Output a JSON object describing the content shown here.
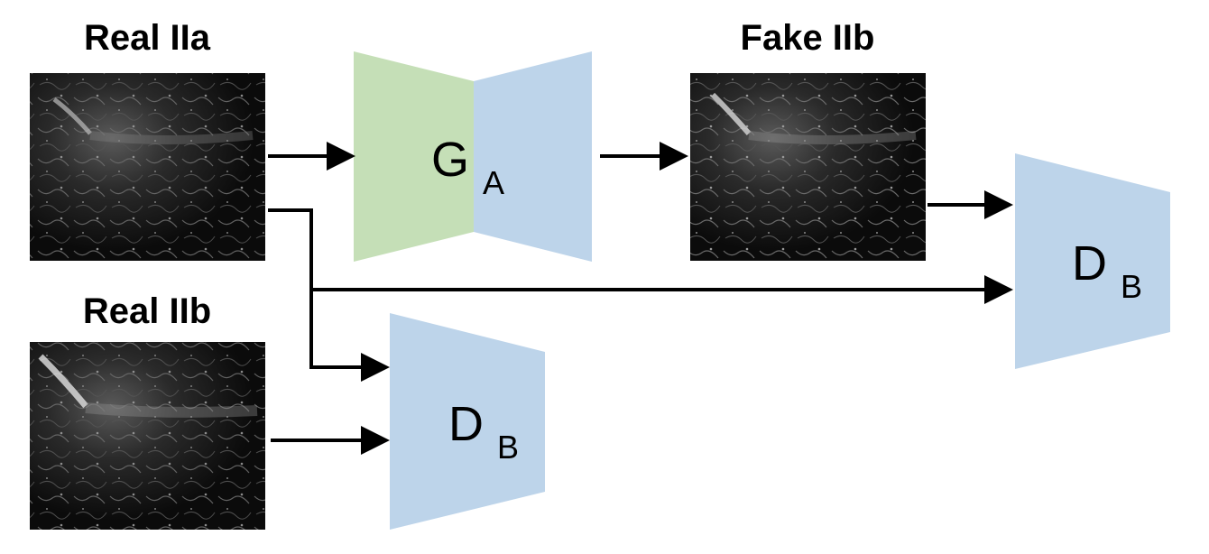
{
  "labels": {
    "real_a": "Real IIa",
    "fake_b": "Fake IIb",
    "real_b": "Real IIb"
  },
  "blocks": {
    "generator": {
      "main": "G",
      "sub": "A"
    },
    "discriminator_top": {
      "main": "D",
      "sub": "B"
    },
    "discriminator_bottom": {
      "main": "D",
      "sub": "B"
    }
  },
  "colors": {
    "encoder": "#c5dfb7",
    "decoder": "#bdd4ea",
    "discriminator": "#bdd4ea",
    "arrow": "#000000",
    "image_bg": "#0b0b0b"
  },
  "images": {
    "real_a": "dark microscopy image",
    "fake_b": "dark microscopy image",
    "real_b": "dark microscopy image"
  }
}
